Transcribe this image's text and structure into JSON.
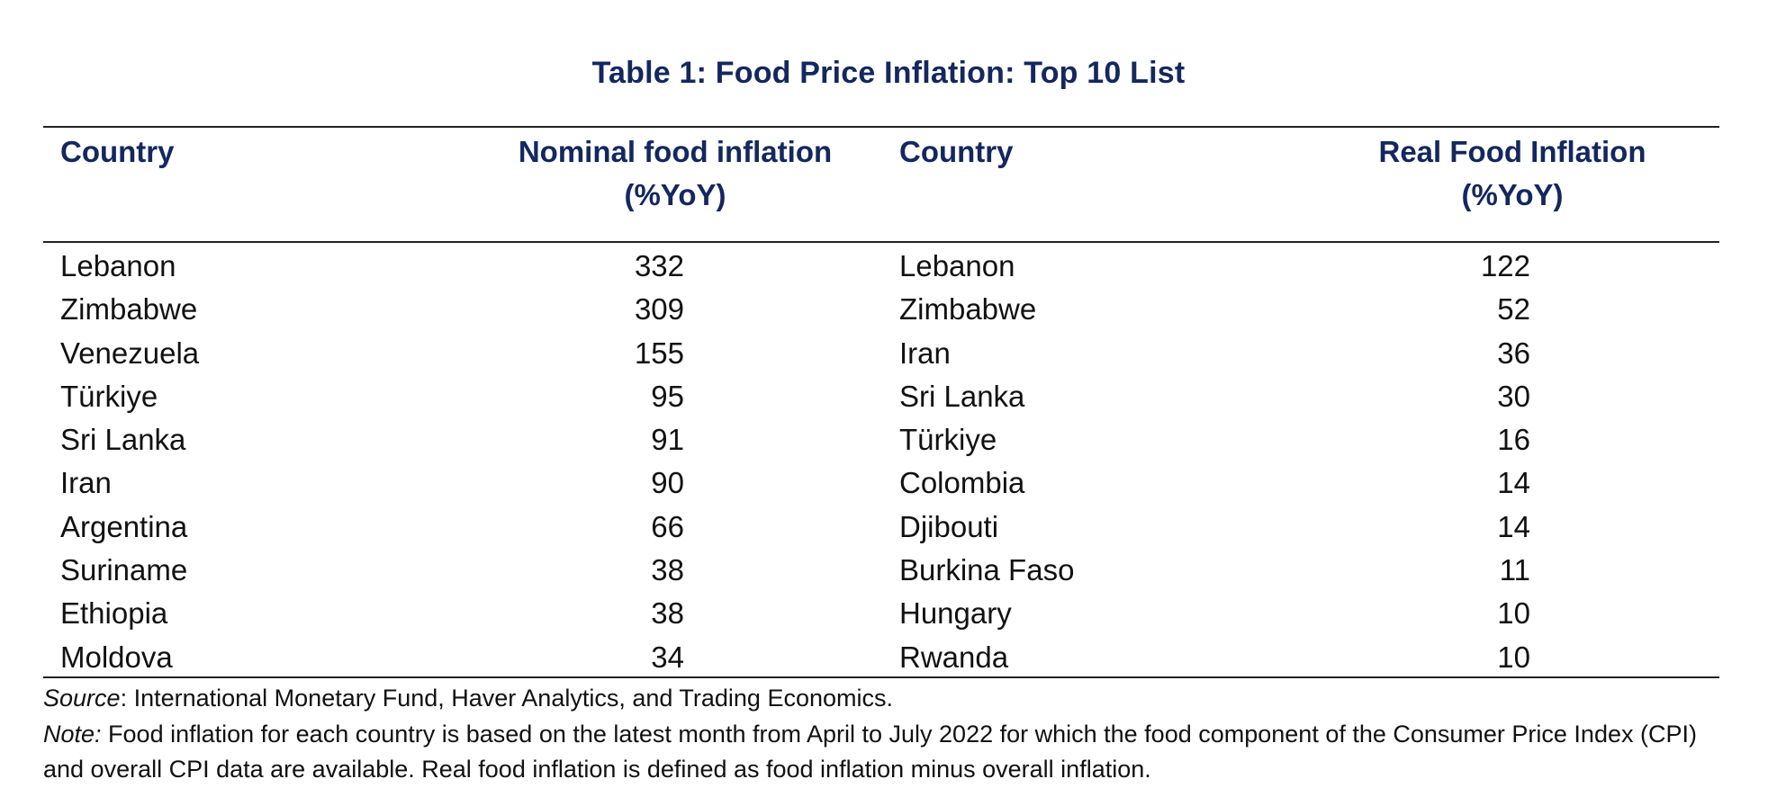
{
  "title": "Table 1: Food Price Inflation: Top 10 List",
  "headers": {
    "country_left": "Country",
    "nominal_line1": "Nominal food inflation",
    "nominal_line2": "(%YoY)",
    "country_right": "Country",
    "real_line1": "Real Food Inflation",
    "real_line2": "(%YoY)"
  },
  "rows": [
    {
      "country_nominal": "Lebanon",
      "nominal": "332",
      "country_real": "Lebanon",
      "real": "122"
    },
    {
      "country_nominal": "Zimbabwe",
      "nominal": "309",
      "country_real": "Zimbabwe",
      "real": "52"
    },
    {
      "country_nominal": "Venezuela",
      "nominal": "155",
      "country_real": "Iran",
      "real": "36"
    },
    {
      "country_nominal": "Türkiye",
      "nominal": "95",
      "country_real": "Sri Lanka",
      "real": "30"
    },
    {
      "country_nominal": "Sri Lanka",
      "nominal": "91",
      "country_real": "Türkiye",
      "real": "16"
    },
    {
      "country_nominal": "Iran",
      "nominal": "90",
      "country_real": "Colombia",
      "real": "14"
    },
    {
      "country_nominal": "Argentina",
      "nominal": "66",
      "country_real": "Djibouti",
      "real": "14"
    },
    {
      "country_nominal": "Suriname",
      "nominal": "38",
      "country_real": "Burkina Faso",
      "real": "11"
    },
    {
      "country_nominal": "Ethiopia",
      "nominal": "38",
      "country_real": "Hungary",
      "real": "10"
    },
    {
      "country_nominal": "Moldova",
      "nominal": "34",
      "country_real": "Rwanda",
      "real": "10"
    }
  ],
  "source": {
    "label": "Source",
    "text": ": International Monetary Fund, Haver Analytics, and Trading Economics."
  },
  "note": {
    "label": "Note:",
    "text": " Food inflation for each country is based on the latest month from April to July 2022 for which the food component of the Consumer Price Index (CPI) and overall CPI data are available. Real food inflation is defined as food inflation minus overall inflation."
  },
  "colors": {
    "heading": "#14275e",
    "text": "#111111",
    "rule": "#222222"
  }
}
